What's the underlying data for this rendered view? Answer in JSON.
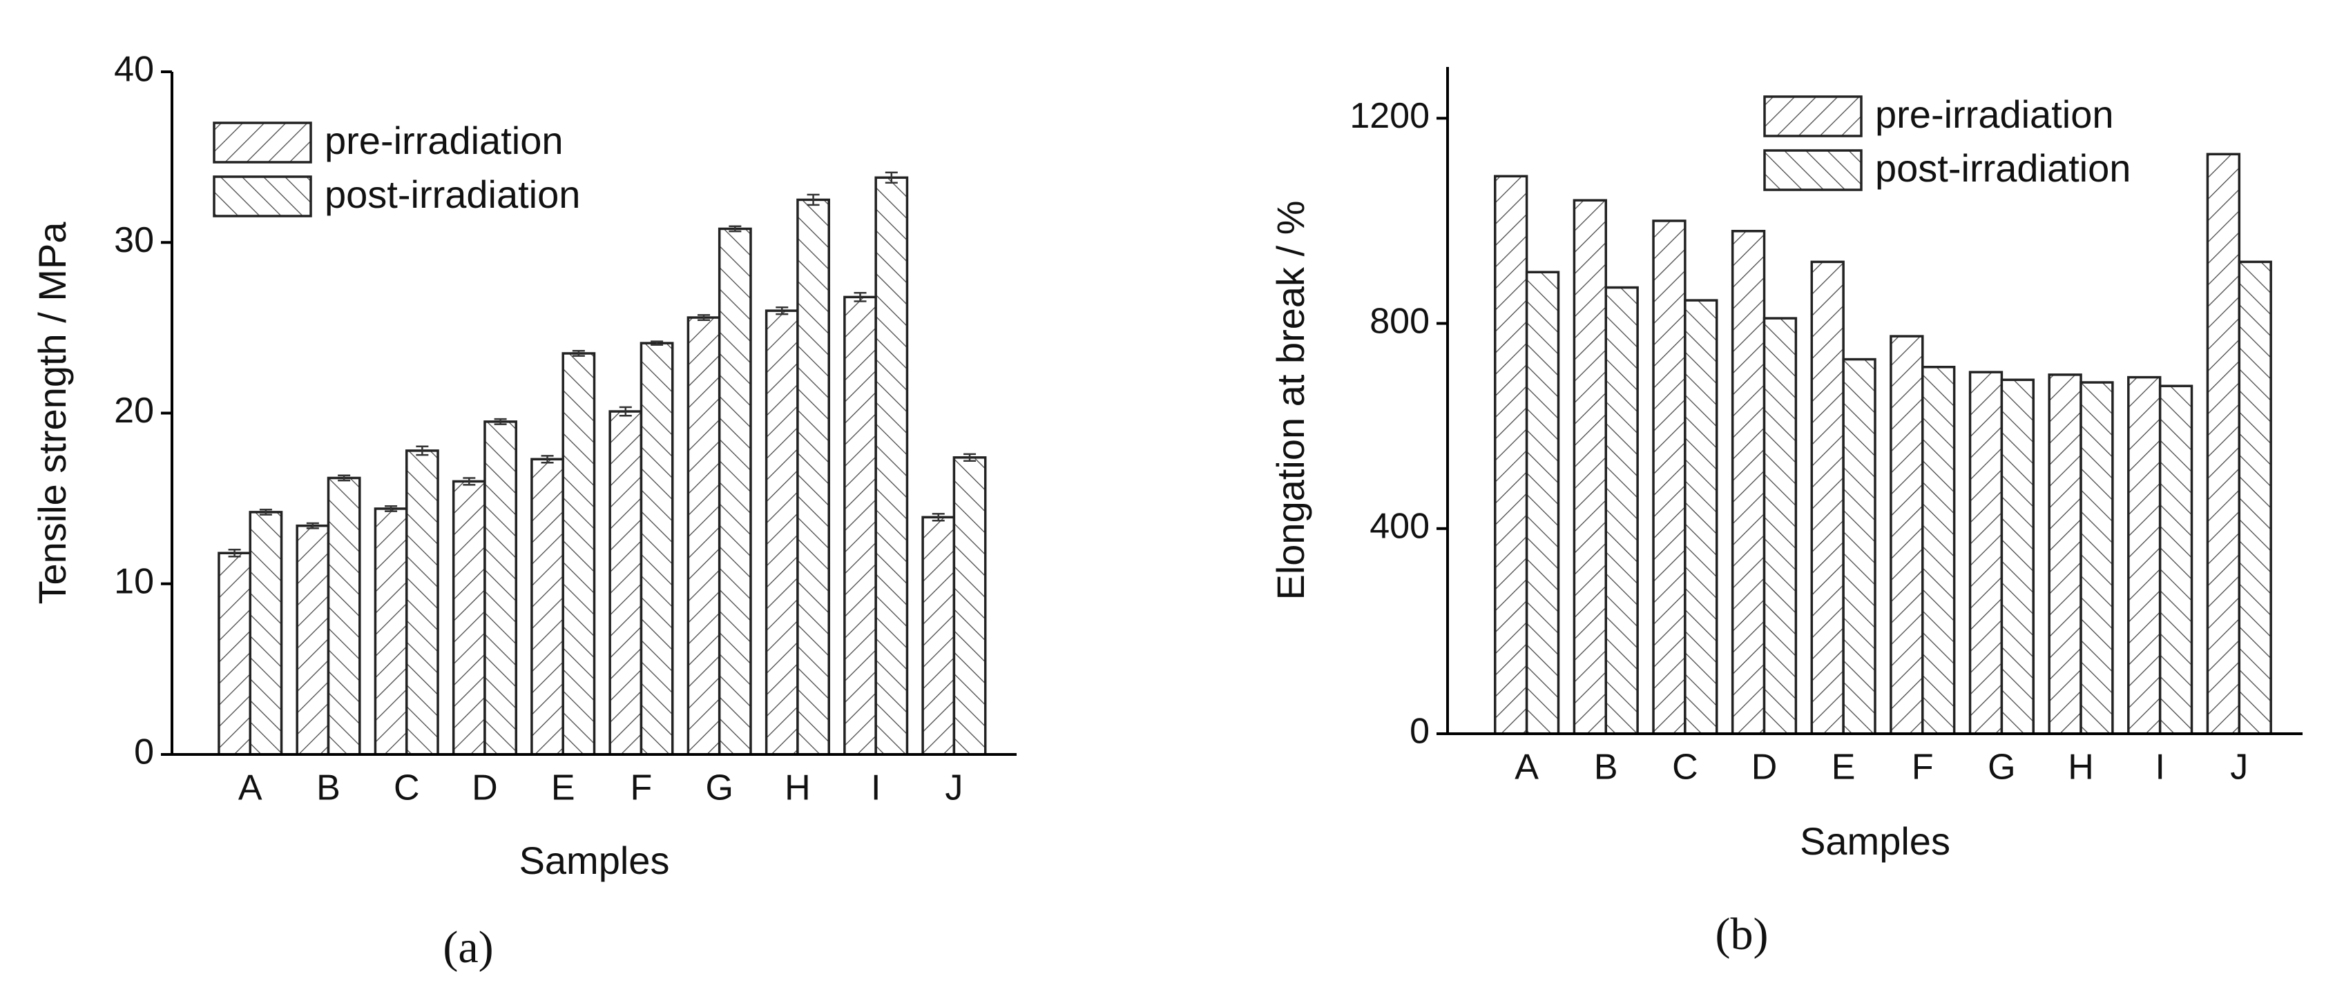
{
  "chart_data": [
    {
      "type": "bar",
      "label": "(a)",
      "x_label": "Samples",
      "y_label": "Tensile strength / MPa",
      "categories": [
        "A",
        "B",
        "C",
        "D",
        "E",
        "F",
        "G",
        "H",
        "I",
        "J"
      ],
      "series": [
        {
          "name": "pre-irradiation",
          "color": "#222222",
          "hatch": "/",
          "values": [
            11.8,
            13.4,
            14.4,
            16.0,
            17.3,
            20.1,
            25.6,
            26.0,
            26.8,
            13.9
          ],
          "errors": [
            0.2,
            0.15,
            0.15,
            0.2,
            0.2,
            0.25,
            0.15,
            0.2,
            0.25,
            0.2
          ]
        },
        {
          "name": "post-irradiation",
          "color": "#222222",
          "hatch": "\\",
          "values": [
            14.2,
            16.2,
            17.8,
            19.5,
            23.5,
            24.1,
            30.8,
            32.5,
            33.8,
            17.4
          ],
          "errors": [
            0.15,
            0.15,
            0.25,
            0.15,
            0.15,
            0.1,
            0.15,
            0.3,
            0.3,
            0.2
          ]
        }
      ],
      "ylim": [
        0,
        40
      ],
      "yticks": [
        0,
        10,
        20,
        30,
        40
      ],
      "legend": "upper left"
    },
    {
      "type": "bar",
      "label": "(b)",
      "x_label": "Samples",
      "y_label": "Elongation at break / %",
      "categories": [
        "A",
        "B",
        "C",
        "D",
        "E",
        "F",
        "G",
        "H",
        "I",
        "J"
      ],
      "series": [
        {
          "name": "pre-irradiation",
          "color": "#222222",
          "hatch": "/",
          "values": [
            1087,
            1040,
            1000,
            980,
            920,
            775,
            705,
            700,
            695,
            1130
          ]
        },
        {
          "name": "post-irradiation",
          "color": "#222222",
          "hatch": "\\",
          "values": [
            900,
            870,
            845,
            810,
            730,
            715,
            690,
            685,
            678,
            920
          ]
        }
      ],
      "ylim": [
        0,
        1300
      ],
      "yticks": [
        0,
        400,
        800,
        1200
      ],
      "legend": "upper left"
    }
  ]
}
